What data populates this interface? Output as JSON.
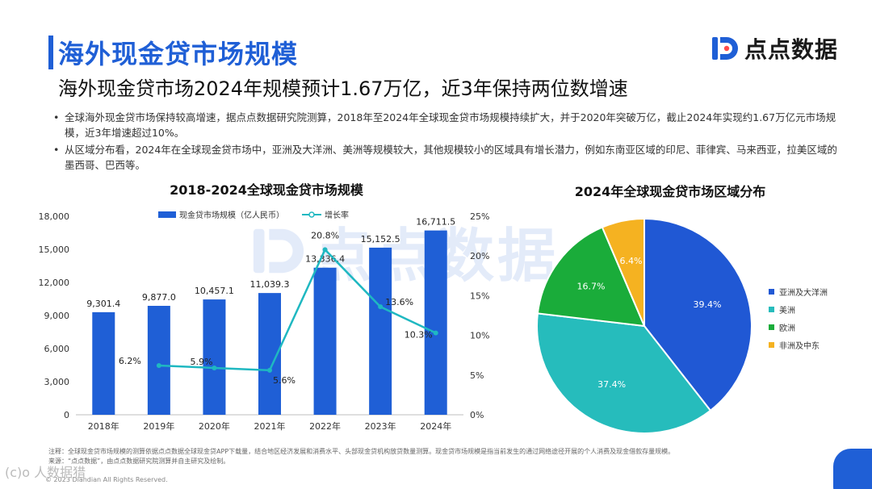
{
  "header": {
    "title": "海外现金贷市场规模",
    "subtitle": "海外现金贷市场2024年规模预计1.67万亿，近3年保持两位数增速"
  },
  "logo": {
    "text": "点点数据",
    "icon": "brand-d-icon",
    "color": "#1f5fd6"
  },
  "bullets": [
    "全球海外现金贷市场保持较高增速，据点点数据研究院测算，2018年至2024年全球现金贷市场规模持续扩大，并于2020年突破万亿，截止2024年实现约1.67万亿元市场规模，近3年增速超过10%。",
    "从区域分布看，2024年在全球现金贷市场中，亚洲及大洋洲、美洲等规模较大，其他规模较小的区域具有增长潜力，例如东南亚区域的印尼、菲律宾、马来西亚，拉美区域的墨西哥、巴西等。"
  ],
  "watermark": {
    "text": "点点数据"
  },
  "chart_data": [
    {
      "type": "bar",
      "title": "2018-2024全球现金贷市场规模",
      "categories": [
        "2018年",
        "2019年",
        "2020年",
        "2021年",
        "2022年",
        "2023年",
        "2024年"
      ],
      "series": [
        {
          "name": "现金贷市场规模（亿人民币）",
          "type": "bar",
          "color": "#1f5fd6",
          "values": [
            9301.4,
            9877.0,
            10457.1,
            11039.3,
            13336.4,
            15152.5,
            16711.5
          ],
          "labels": [
            "9,301.4",
            "9,877.0",
            "10,457.1",
            "11,039.3",
            "13,336.4",
            "15,152.5",
            "16,711.5"
          ]
        },
        {
          "name": "增长率",
          "type": "line",
          "color": "#1fb8c1",
          "axis": "right",
          "values": [
            null,
            6.2,
            5.9,
            5.6,
            20.8,
            13.6,
            10.3
          ],
          "labels": [
            "",
            "6.2%",
            "5.9%",
            "5.6%",
            "20.8%",
            "13.6%",
            "10.3%"
          ]
        }
      ],
      "y_left": {
        "range": [
          0,
          18000
        ],
        "ticks": [
          "0",
          "3,000",
          "6,000",
          "9,000",
          "12,000",
          "15,000",
          "18,000"
        ],
        "tick_values": [
          0,
          3000,
          6000,
          9000,
          12000,
          15000,
          18000
        ]
      },
      "y_right": {
        "range": [
          0,
          25
        ],
        "ticks": [
          "0%",
          "5%",
          "10%",
          "15%",
          "20%",
          "25%"
        ],
        "tick_values": [
          0,
          5,
          10,
          15,
          20,
          25
        ]
      },
      "legend": "top"
    },
    {
      "type": "pie",
      "title": "2024年全球现金贷市场区域分布",
      "slices": [
        {
          "name": "亚洲及大洋洲",
          "value": 39.4,
          "label": "39.4%",
          "color": "#2058d4"
        },
        {
          "name": "美洲",
          "value": 37.4,
          "label": "37.4%",
          "color": "#26bcbc"
        },
        {
          "name": "欧洲",
          "value": 16.7,
          "label": "16.7%",
          "color": "#1aac3a"
        },
        {
          "name": "非洲及中东",
          "value": 6.4,
          "label": "6.4%",
          "color": "#f5b221"
        }
      ],
      "legend": "right"
    }
  ],
  "footnote": {
    "note": "注释：全球现金贷市场规模的测算依据点点数据全球现金贷APP下载量，结合地区经济发展和消费水平、头部现金贷机构放贷数量测算。现金贷市场规模是指当前发生的通过网络途径开展的个人消费及现金借款存量规模。",
    "source": "来源：“点点数据”，由点点数据研究院测算并自主研究及绘制。",
    "copyright": "© 2023 Diandian All Rights Reserved.",
    "corner_mark": "(c)o 人数据猎"
  }
}
